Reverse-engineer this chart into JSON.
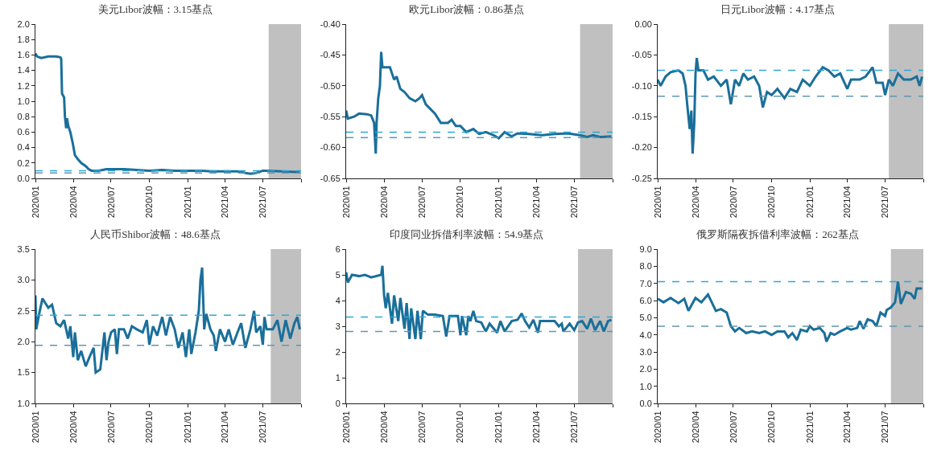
{
  "chart_data": [
    {
      "type": "line",
      "title": "美元Libor波幅：3.15基点",
      "color": "#1a6f9a",
      "x": [
        "2020-01-01",
        "2020-01-05",
        "2020-01-15",
        "2020-02-01",
        "2020-02-20",
        "2020-03-01",
        "2020-03-03",
        "2020-03-05",
        "2020-03-10",
        "2020-03-12",
        "2020-03-15",
        "2020-03-17",
        "2020-03-20",
        "2020-03-25",
        "2020-03-31",
        "2020-04-05",
        "2020-04-12",
        "2020-04-20",
        "2020-05-01",
        "2020-05-08",
        "2020-05-15",
        "2020-06-01",
        "2020-06-20",
        "2020-07-10",
        "2020-08-01",
        "2020-09-01",
        "2020-10-01",
        "2020-11-01",
        "2020-12-01",
        "2021-01-01",
        "2021-02-01",
        "2021-03-01",
        "2021-04-01",
        "2021-05-01",
        "2021-05-20",
        "2021-06-01",
        "2021-06-15",
        "2021-07-01",
        "2021-07-15",
        "2021-08-15",
        "2021-09-28"
      ],
      "values": [
        1.62,
        1.58,
        1.56,
        1.58,
        1.58,
        1.57,
        1.55,
        1.1,
        1.05,
        0.8,
        0.65,
        0.78,
        0.68,
        0.6,
        0.45,
        0.3,
        0.25,
        0.2,
        0.16,
        0.12,
        0.1,
        0.1,
        0.12,
        0.12,
        0.12,
        0.11,
        0.1,
        0.11,
        0.1,
        0.1,
        0.1,
        0.09,
        0.09,
        0.09,
        0.07,
        0.06,
        0.07,
        0.1,
        0.1,
        0.09,
        0.08
      ],
      "xlim": [
        "2020-01-01",
        "2021-10-01"
      ],
      "xticks": [
        {
          "value": "2020-01-01",
          "label": "2020/01"
        },
        {
          "value": "2020-04-01",
          "label": "2020/04"
        },
        {
          "value": "2020-07-01",
          "label": "2020/07"
        },
        {
          "value": "2020-10-01",
          "label": "2020/10"
        },
        {
          "value": "2021-01-01",
          "label": "2021/01"
        },
        {
          "value": "2021-04-01",
          "label": "2021/04"
        },
        {
          "value": "2021-07-01",
          "label": "2021/07"
        },
        {
          "value": "2021-10-01",
          "label": null
        }
      ],
      "ylim": [
        0,
        2
      ],
      "yticks": [
        {
          "value": 0,
          "label": "0.0"
        },
        {
          "value": 0.2,
          "label": "0.2"
        },
        {
          "value": 0.4,
          "label": "0.4"
        },
        {
          "value": 0.6,
          "label": "0.6"
        },
        {
          "value": 0.8,
          "label": "0.8"
        },
        {
          "value": 1,
          "label": "1.0"
        },
        {
          "value": 1.2,
          "label": "1.2"
        },
        {
          "value": 1.4,
          "label": "1.4"
        },
        {
          "value": 1.6,
          "label": "1.6"
        },
        {
          "value": 1.8,
          "label": "1.8"
        },
        {
          "value": 2,
          "label": "2.0"
        }
      ],
      "ref_lines": [
        {
          "axis": "y",
          "value": 0.1,
          "color": "#2ea7d8",
          "line_style": "dashed"
        },
        {
          "axis": "y",
          "value": 0.07,
          "color": "#5f97ad",
          "line_style": "dashed"
        }
      ],
      "bands": [
        {
          "axis": "x",
          "from": "2021-07-15",
          "to": "2021-10-01",
          "color": "#c0c0c0"
        }
      ]
    },
    {
      "type": "line",
      "title": "欧元Libor波幅：0.86基点",
      "color": "#1a6f9a",
      "x": [
        "2020-01-01",
        "2020-01-05",
        "2020-01-20",
        "2020-02-01",
        "2020-02-20",
        "2020-03-01",
        "2020-03-08",
        "2020-03-12",
        "2020-03-14",
        "2020-03-18",
        "2020-03-22",
        "2020-03-25",
        "2020-03-28",
        "2020-04-15",
        "2020-04-25",
        "2020-05-01",
        "2020-05-10",
        "2020-05-20",
        "2020-06-01",
        "2020-06-15",
        "2020-06-25",
        "2020-07-01",
        "2020-07-10",
        "2020-08-01",
        "2020-08-15",
        "2020-09-01",
        "2020-09-10",
        "2020-09-20",
        "2020-10-01",
        "2020-10-15",
        "2020-11-01",
        "2020-11-15",
        "2020-12-01",
        "2020-12-20",
        "2021-01-01",
        "2021-01-15",
        "2021-02-01",
        "2021-02-15",
        "2021-03-15",
        "2021-04-15",
        "2021-05-15",
        "2021-06-15",
        "2021-07-15",
        "2021-08-01",
        "2021-08-15",
        "2021-09-01",
        "2021-09-28"
      ],
      "values": [
        -0.54,
        -0.553,
        -0.55,
        -0.545,
        -0.546,
        -0.548,
        -0.56,
        -0.61,
        -0.56,
        -0.52,
        -0.5,
        -0.445,
        -0.47,
        -0.47,
        -0.49,
        -0.485,
        -0.505,
        -0.51,
        -0.52,
        -0.525,
        -0.52,
        -0.515,
        -0.53,
        -0.545,
        -0.56,
        -0.56,
        -0.555,
        -0.565,
        -0.565,
        -0.575,
        -0.57,
        -0.578,
        -0.575,
        -0.58,
        -0.585,
        -0.575,
        -0.582,
        -0.577,
        -0.578,
        -0.58,
        -0.578,
        -0.577,
        -0.58,
        -0.583,
        -0.58,
        -0.583,
        -0.582
      ],
      "xlim": [
        "2020-01-01",
        "2021-10-01"
      ],
      "xticks": [
        {
          "value": "2020-01-01",
          "label": "2020/01"
        },
        {
          "value": "2020-04-01",
          "label": "2020/04"
        },
        {
          "value": "2020-07-01",
          "label": "2020/07"
        },
        {
          "value": "2020-10-01",
          "label": "2020/10"
        },
        {
          "value": "2021-01-01",
          "label": "2021/01"
        },
        {
          "value": "2021-04-01",
          "label": "2021/04"
        },
        {
          "value": "2021-07-01",
          "label": "2021/07"
        },
        {
          "value": "2021-10-01",
          "label": null
        }
      ],
      "ylim": [
        -0.65,
        -0.4
      ],
      "yticks": [
        {
          "value": -0.65,
          "label": "-0.65"
        },
        {
          "value": -0.6,
          "label": "-0.60"
        },
        {
          "value": -0.55,
          "label": "-0.55"
        },
        {
          "value": -0.5,
          "label": "-0.50"
        },
        {
          "value": -0.45,
          "label": "-0.45"
        },
        {
          "value": -0.4,
          "label": "-0.40"
        }
      ],
      "ref_lines": [
        {
          "axis": "y",
          "value": -0.575,
          "color": "#2ea7d8",
          "line_style": "dashed"
        },
        {
          "axis": "y",
          "value": -0.584,
          "color": "#5f97ad",
          "line_style": "dashed"
        }
      ],
      "bands": [
        {
          "axis": "x",
          "from": "2021-07-15",
          "to": "2021-10-01",
          "color": "#c0c0c0"
        }
      ]
    },
    {
      "type": "line",
      "title": "日元Libor波幅：4.17基点",
      "color": "#1a6f9a",
      "x": [
        "2020-01-01",
        "2020-01-08",
        "2020-01-20",
        "2020-02-01",
        "2020-02-20",
        "2020-03-01",
        "2020-03-08",
        "2020-03-12",
        "2020-03-18",
        "2020-03-22",
        "2020-03-25",
        "2020-03-29",
        "2020-04-01",
        "2020-04-04",
        "2020-04-08",
        "2020-04-20",
        "2020-05-01",
        "2020-05-15",
        "2020-06-01",
        "2020-06-15",
        "2020-06-25",
        "2020-07-05",
        "2020-07-15",
        "2020-07-25",
        "2020-08-05",
        "2020-08-20",
        "2020-09-01",
        "2020-09-10",
        "2020-09-20",
        "2020-10-01",
        "2020-10-15",
        "2020-11-01",
        "2020-11-15",
        "2020-12-01",
        "2020-12-15",
        "2021-01-01",
        "2021-01-15",
        "2021-02-01",
        "2021-02-15",
        "2021-03-01",
        "2021-03-15",
        "2021-04-01",
        "2021-04-10",
        "2021-05-01",
        "2021-05-15",
        "2021-06-01",
        "2021-06-10",
        "2021-06-25",
        "2021-07-01",
        "2021-07-10",
        "2021-07-20",
        "2021-08-01",
        "2021-08-15",
        "2021-09-01",
        "2021-09-15",
        "2021-09-22",
        "2021-09-28"
      ],
      "values": [
        -0.09,
        -0.1,
        -0.085,
        -0.078,
        -0.075,
        -0.08,
        -0.1,
        -0.13,
        -0.17,
        -0.14,
        -0.21,
        -0.16,
        -0.08,
        -0.055,
        -0.075,
        -0.075,
        -0.09,
        -0.085,
        -0.1,
        -0.09,
        -0.13,
        -0.09,
        -0.1,
        -0.08,
        -0.09,
        -0.085,
        -0.1,
        -0.135,
        -0.11,
        -0.115,
        -0.105,
        -0.12,
        -0.105,
        -0.11,
        -0.09,
        -0.1,
        -0.085,
        -0.07,
        -0.075,
        -0.085,
        -0.08,
        -0.105,
        -0.09,
        -0.09,
        -0.085,
        -0.07,
        -0.095,
        -0.095,
        -0.115,
        -0.09,
        -0.1,
        -0.08,
        -0.09,
        -0.09,
        -0.085,
        -0.1,
        -0.085
      ],
      "xlim": [
        "2020-01-01",
        "2021-10-01"
      ],
      "xticks": [
        {
          "value": "2020-01-01",
          "label": "2020/01"
        },
        {
          "value": "2020-04-01",
          "label": "2020/04"
        },
        {
          "value": "2020-07-01",
          "label": "2020/07"
        },
        {
          "value": "2020-10-01",
          "label": "2020/10"
        },
        {
          "value": "2021-01-01",
          "label": "2021/01"
        },
        {
          "value": "2021-04-01",
          "label": "2021/04"
        },
        {
          "value": "2021-07-01",
          "label": "2021/07"
        },
        {
          "value": "2021-10-01",
          "label": null
        }
      ],
      "ylim": [
        -0.25,
        0
      ],
      "yticks": [
        {
          "value": -0.25,
          "label": "-0.25"
        },
        {
          "value": -0.2,
          "label": "-0.20"
        },
        {
          "value": -0.15,
          "label": "-0.15"
        },
        {
          "value": -0.1,
          "label": "-0.10"
        },
        {
          "value": -0.05,
          "label": "-0.05"
        },
        {
          "value": 0,
          "label": "0.00"
        }
      ],
      "ref_lines": [
        {
          "axis": "y",
          "value": -0.075,
          "color": "#2ea7d8",
          "line_style": "dashed"
        },
        {
          "axis": "y",
          "value": -0.117,
          "color": "#5f97ad",
          "line_style": "dashed"
        }
      ],
      "bands": [
        {
          "axis": "x",
          "from": "2021-07-10",
          "to": "2021-10-01",
          "color": "#c0c0c0"
        }
      ]
    },
    {
      "type": "line",
      "title": "人民币Shibor波幅：48.6基点",
      "color": "#1a6f9a",
      "x": [
        "2020-01-01",
        "2020-01-03",
        "2020-01-10",
        "2020-01-18",
        "2020-02-01",
        "2020-02-10",
        "2020-02-20",
        "2020-03-01",
        "2020-03-10",
        "2020-03-20",
        "2020-03-25",
        "2020-04-01",
        "2020-04-05",
        "2020-04-12",
        "2020-04-20",
        "2020-05-01",
        "2020-05-10",
        "2020-05-20",
        "2020-05-25",
        "2020-06-05",
        "2020-06-15",
        "2020-06-20",
        "2020-06-25",
        "2020-07-01",
        "2020-07-10",
        "2020-07-15",
        "2020-07-20",
        "2020-08-01",
        "2020-08-10",
        "2020-08-20",
        "2020-09-01",
        "2020-09-15",
        "2020-09-25",
        "2020-10-01",
        "2020-10-10",
        "2020-10-20",
        "2020-11-01",
        "2020-11-10",
        "2020-11-20",
        "2020-12-01",
        "2020-12-10",
        "2020-12-20",
        "2020-12-28",
        "2021-01-05",
        "2021-01-10",
        "2021-01-20",
        "2021-01-28",
        "2021-02-01",
        "2021-02-05",
        "2021-02-10",
        "2021-02-15",
        "2021-02-25",
        "2021-03-05",
        "2021-03-10",
        "2021-03-20",
        "2021-04-01",
        "2021-04-10",
        "2021-04-20",
        "2021-05-01",
        "2021-05-10",
        "2021-05-20",
        "2021-06-01",
        "2021-06-10",
        "2021-06-15",
        "2021-06-25",
        "2021-07-01",
        "2021-07-05",
        "2021-07-10",
        "2021-07-25",
        "2021-08-05",
        "2021-08-15",
        "2021-08-25",
        "2021-09-05",
        "2021-09-15",
        "2021-09-22",
        "2021-09-28"
      ],
      "values": [
        2.75,
        2.2,
        2.45,
        2.7,
        2.55,
        2.6,
        2.3,
        2.25,
        2.35,
        2.05,
        2.25,
        1.75,
        2.15,
        1.7,
        1.85,
        1.6,
        1.75,
        1.9,
        1.5,
        1.55,
        2.15,
        1.7,
        2.0,
        2.15,
        2.2,
        1.8,
        2.2,
        2.2,
        2.05,
        2.25,
        2.2,
        2.15,
        2.35,
        1.95,
        2.25,
        2.1,
        2.4,
        2.1,
        2.4,
        2.2,
        1.9,
        2.15,
        1.75,
        2.2,
        1.8,
        2.15,
        2.5,
        3.0,
        3.2,
        2.2,
        2.45,
        2.2,
        2.1,
        1.85,
        2.2,
        2.0,
        2.2,
        1.95,
        2.15,
        2.3,
        1.9,
        2.2,
        2.5,
        2.15,
        2.25,
        1.95,
        2.4,
        2.2,
        2.2,
        2.35,
        2.0,
        2.35,
        2.05,
        2.3,
        2.4,
        2.2
      ],
      "xlim": [
        "2020-01-01",
        "2021-10-01"
      ],
      "xticks": [
        {
          "value": "2020-01-01",
          "label": "2020/01"
        },
        {
          "value": "2020-04-01",
          "label": "2020/04"
        },
        {
          "value": "2020-07-01",
          "label": "2020/07"
        },
        {
          "value": "2020-10-01",
          "label": "2020/10"
        },
        {
          "value": "2021-01-01",
          "label": "2021/01"
        },
        {
          "value": "2021-04-01",
          "label": "2021/04"
        },
        {
          "value": "2021-07-01",
          "label": "2021/07"
        },
        {
          "value": "2021-10-01",
          "label": null
        }
      ],
      "ylim": [
        1,
        3.5
      ],
      "yticks": [
        {
          "value": 1,
          "label": "1.0"
        },
        {
          "value": 1.5,
          "label": "1.5"
        },
        {
          "value": 2,
          "label": "2.0"
        },
        {
          "value": 2.5,
          "label": "2.5"
        },
        {
          "value": 3,
          "label": "3.0"
        },
        {
          "value": 3.5,
          "label": "3.5"
        }
      ],
      "ref_lines": [
        {
          "axis": "y",
          "value": 2.43,
          "color": "#2ea7d8",
          "line_style": "dashed"
        },
        {
          "axis": "y",
          "value": 1.94,
          "color": "#5f97ad",
          "line_style": "dashed"
        }
      ],
      "bands": [
        {
          "axis": "x",
          "from": "2021-07-20",
          "to": "2021-10-01",
          "color": "#c0c0c0"
        }
      ]
    },
    {
      "type": "line",
      "title": "印度同业拆借利率波幅：54.9基点",
      "color": "#1a6f9a",
      "x": [
        "2020-01-01",
        "2020-01-05",
        "2020-01-15",
        "2020-02-01",
        "2020-02-15",
        "2020-03-01",
        "2020-03-25",
        "2020-03-28",
        "2020-04-01",
        "2020-04-05",
        "2020-04-10",
        "2020-04-20",
        "2020-04-25",
        "2020-05-05",
        "2020-05-10",
        "2020-05-20",
        "2020-05-25",
        "2020-06-01",
        "2020-06-05",
        "2020-06-15",
        "2020-06-20",
        "2020-06-28",
        "2020-07-03",
        "2020-07-15",
        "2020-08-01",
        "2020-08-20",
        "2020-08-28",
        "2020-09-05",
        "2020-09-25",
        "2020-10-01",
        "2020-10-05",
        "2020-10-15",
        "2020-10-20",
        "2020-10-25",
        "2020-11-01",
        "2020-11-08",
        "2020-11-20",
        "2020-12-01",
        "2020-12-10",
        "2020-12-28",
        "2021-01-05",
        "2021-01-15",
        "2021-02-01",
        "2021-02-15",
        "2021-02-25",
        "2021-03-05",
        "2021-03-15",
        "2021-03-25",
        "2021-04-05",
        "2021-04-10",
        "2021-04-25",
        "2021-05-15",
        "2021-05-25",
        "2021-06-01",
        "2021-06-05",
        "2021-06-20",
        "2021-07-01",
        "2021-07-10",
        "2021-07-20",
        "2021-08-01",
        "2021-08-10",
        "2021-08-20",
        "2021-09-01",
        "2021-09-10",
        "2021-09-20",
        "2021-09-28"
      ],
      "values": [
        5.1,
        4.7,
        5.0,
        4.95,
        5.0,
        4.9,
        5.0,
        5.35,
        4.2,
        3.7,
        4.3,
        3.1,
        4.2,
        3.2,
        4.1,
        2.9,
        3.9,
        2.5,
        3.7,
        2.5,
        3.6,
        2.5,
        3.6,
        3.45,
        3.45,
        3.4,
        2.6,
        3.4,
        3.4,
        2.65,
        3.4,
        2.65,
        3.4,
        3.2,
        3.6,
        3.2,
        3.15,
        2.8,
        3.1,
        2.75,
        3.2,
        2.8,
        3.2,
        3.25,
        3.5,
        3.2,
        2.95,
        3.25,
        2.75,
        3.2,
        3.2,
        3.2,
        3.0,
        3.1,
        2.8,
        3.1,
        2.85,
        3.15,
        3.2,
        2.9,
        3.3,
        2.85,
        3.2,
        2.8,
        3.2,
        3.25
      ],
      "xlim": [
        "2020-01-01",
        "2021-10-01"
      ],
      "xticks": [
        {
          "value": "2020-01-01",
          "label": "2020/01"
        },
        {
          "value": "2020-04-01",
          "label": "2020/04"
        },
        {
          "value": "2020-07-01",
          "label": "2020/07"
        },
        {
          "value": "2020-10-01",
          "label": "2020/10"
        },
        {
          "value": "2021-01-01",
          "label": "2021/01"
        },
        {
          "value": "2021-04-01",
          "label": "2021/04"
        },
        {
          "value": "2021-07-01",
          "label": "2021/07"
        },
        {
          "value": "2021-10-01",
          "label": null
        }
      ],
      "ylim": [
        0,
        6
      ],
      "yticks": [
        0,
        1,
        2,
        3,
        4,
        5,
        6
      ],
      "ref_lines": [
        {
          "axis": "y",
          "value": 3.36,
          "color": "#2ea7d8",
          "line_style": "dashed"
        },
        {
          "axis": "y",
          "value": 2.8,
          "color": "#5f97ad",
          "line_style": "dashed"
        }
      ],
      "bands": [
        {
          "axis": "x",
          "from": "2021-07-10",
          "to": "2021-10-01",
          "color": "#c0c0c0"
        }
      ]
    },
    {
      "type": "line",
      "title": "俄罗斯隔夜拆借利率波幅：262基点",
      "color": "#1a6f9a",
      "x": [
        "2020-01-01",
        "2020-01-15",
        "2020-02-01",
        "2020-02-20",
        "2020-03-05",
        "2020-03-15",
        "2020-03-25",
        "2020-04-01",
        "2020-04-15",
        "2020-05-01",
        "2020-05-10",
        "2020-05-20",
        "2020-06-01",
        "2020-06-15",
        "2020-06-25",
        "2020-07-05",
        "2020-07-15",
        "2020-08-01",
        "2020-08-15",
        "2020-09-01",
        "2020-09-15",
        "2020-10-01",
        "2020-10-15",
        "2020-11-01",
        "2020-11-10",
        "2020-11-20",
        "2020-12-01",
        "2020-12-10",
        "2020-12-25",
        "2021-01-01",
        "2021-01-10",
        "2021-01-25",
        "2021-02-05",
        "2021-02-10",
        "2021-02-20",
        "2021-03-01",
        "2021-03-15",
        "2021-04-01",
        "2021-04-10",
        "2021-04-25",
        "2021-05-01",
        "2021-05-10",
        "2021-05-20",
        "2021-06-01",
        "2021-06-10",
        "2021-06-20",
        "2021-07-01",
        "2021-07-05",
        "2021-07-15",
        "2021-07-25",
        "2021-08-01",
        "2021-08-08",
        "2021-08-20",
        "2021-09-01",
        "2021-09-10",
        "2021-09-15",
        "2021-09-28"
      ],
      "values": [
        6.1,
        5.9,
        6.15,
        5.85,
        6.1,
        5.4,
        5.85,
        6.15,
        5.9,
        6.35,
        5.9,
        5.4,
        5.5,
        5.3,
        4.5,
        4.2,
        4.4,
        4.1,
        4.2,
        4.1,
        4.2,
        4.0,
        4.2,
        4.2,
        3.85,
        4.1,
        3.7,
        4.3,
        4.2,
        4.5,
        4.3,
        4.4,
        4.1,
        3.6,
        4.1,
        4.0,
        4.2,
        4.4,
        4.3,
        4.4,
        4.8,
        4.35,
        4.9,
        4.8,
        4.5,
        5.3,
        5.1,
        5.45,
        5.6,
        5.9,
        7.1,
        5.8,
        6.5,
        6.4,
        6.1,
        6.7,
        6.7
      ],
      "xlim": [
        "2020-01-01",
        "2021-10-01"
      ],
      "xticks": [
        {
          "value": "2020-01-01",
          "label": "2020/01"
        },
        {
          "value": "2020-04-01",
          "label": "2020/04"
        },
        {
          "value": "2020-07-01",
          "label": "2020/07"
        },
        {
          "value": "2020-10-01",
          "label": "2020/10"
        },
        {
          "value": "2021-01-01",
          "label": "2021/01"
        },
        {
          "value": "2021-04-01",
          "label": "2021/04"
        },
        {
          "value": "2021-07-01",
          "label": "2021/07"
        },
        {
          "value": "2021-10-01",
          "label": null
        }
      ],
      "ylim": [
        0,
        9
      ],
      "yticks": [
        {
          "value": 0,
          "label": "0.0"
        },
        {
          "value": 1,
          "label": "1.0"
        },
        {
          "value": 2,
          "label": "2.0"
        },
        {
          "value": 3,
          "label": "3.0"
        },
        {
          "value": 4,
          "label": "4.0"
        },
        {
          "value": 5,
          "label": "5.0"
        },
        {
          "value": 6,
          "label": "6.0"
        },
        {
          "value": 7,
          "label": "7.0"
        },
        {
          "value": 8,
          "label": "8.0"
        },
        {
          "value": 9,
          "label": "9.0"
        }
      ],
      "ref_lines": [
        {
          "axis": "y",
          "value": 7.1,
          "color": "#2ea7d8",
          "line_style": "dashed"
        },
        {
          "axis": "y",
          "value": 4.5,
          "color": "#5f97ad",
          "line_style": "dashed"
        }
      ],
      "bands": [
        {
          "axis": "x",
          "from": "2021-07-15",
          "to": "2021-10-01",
          "color": "#c0c0c0"
        }
      ]
    }
  ]
}
